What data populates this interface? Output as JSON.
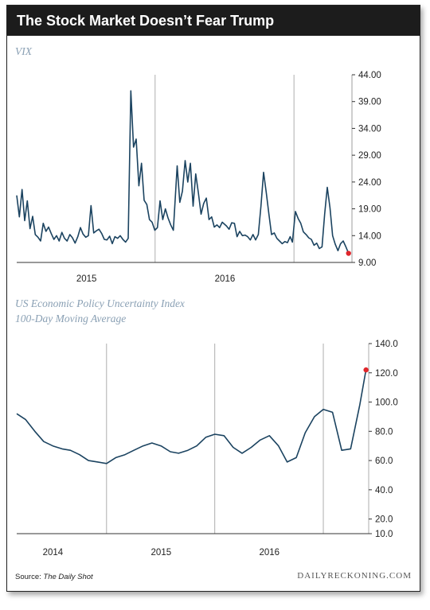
{
  "header": {
    "title": "The Stock Market Doesn’t Fear Trump"
  },
  "footer": {
    "source_label": "Source:",
    "source_name": "The Daily Shot",
    "brand": "DAILYRECKONING.COM"
  },
  "colors": {
    "line": "#1b4360",
    "endpoint": "#e0262b",
    "title_bar": "#1c1c1c",
    "chart_title": "#8aa0b4"
  },
  "chart_data": [
    {
      "type": "line",
      "title": "VIX",
      "ylim": [
        9,
        44
      ],
      "y_ticks": [
        "44.00",
        "39.00",
        "34.00",
        "29.00",
        "24.00",
        "19.00",
        "14.00",
        "9.00"
      ],
      "x_ticks": [
        "2015",
        "2016"
      ],
      "grid": "vertical",
      "endpoint_marker": true,
      "series": [
        {
          "x": [
            "2014-07-01",
            "2014-07-08",
            "2014-07-15",
            "2014-07-22",
            "2014-07-29",
            "2014-08-05",
            "2014-08-12",
            "2014-08-19",
            "2014-08-26",
            "2014-09-02",
            "2014-09-09",
            "2014-09-16",
            "2014-09-23",
            "2014-09-30",
            "2014-10-07",
            "2014-10-14",
            "2014-10-21",
            "2014-10-28",
            "2014-11-04",
            "2014-11-11",
            "2014-11-18",
            "2014-11-25",
            "2014-12-02",
            "2014-12-09",
            "2014-12-16",
            "2014-12-23",
            "2014-12-30",
            "2015-01-06",
            "2015-01-13",
            "2015-01-20",
            "2015-01-27",
            "2015-02-03",
            "2015-02-10",
            "2015-02-17",
            "2015-02-24",
            "2015-03-03",
            "2015-03-10",
            "2015-03-17",
            "2015-03-24",
            "2015-03-31",
            "2015-04-07",
            "2015-04-14",
            "2015-04-21",
            "2015-04-28",
            "2015-05-05",
            "2015-05-12",
            "2015-05-19",
            "2015-05-26",
            "2015-06-02",
            "2015-06-09",
            "2015-06-16",
            "2015-06-23",
            "2015-06-30",
            "2015-07-07",
            "2015-07-14",
            "2015-07-21",
            "2015-07-28",
            "2015-08-04",
            "2015-08-11",
            "2015-08-18",
            "2015-08-24",
            "2015-08-28",
            "2015-09-04",
            "2015-09-11",
            "2015-09-18",
            "2015-09-25",
            "2015-10-02",
            "2015-10-09",
            "2015-10-16",
            "2015-10-23",
            "2015-10-30",
            "2015-11-06",
            "2015-11-13",
            "2015-11-20",
            "2015-11-27",
            "2015-12-04",
            "2015-12-11",
            "2015-12-18",
            "2015-12-25",
            "2016-01-05",
            "2016-01-12",
            "2016-01-19",
            "2016-01-26",
            "2016-02-02",
            "2016-02-09",
            "2016-02-16",
            "2016-02-23",
            "2016-03-01",
            "2016-03-08",
            "2016-03-15",
            "2016-03-22",
            "2016-03-29",
            "2016-04-05",
            "2016-04-12",
            "2016-04-19",
            "2016-04-26",
            "2016-05-03",
            "2016-05-10",
            "2016-05-17",
            "2016-05-24",
            "2016-05-31",
            "2016-06-07",
            "2016-06-14",
            "2016-06-21",
            "2016-06-27",
            "2016-07-05",
            "2016-07-12",
            "2016-07-19",
            "2016-07-26",
            "2016-08-02",
            "2016-08-09",
            "2016-08-16",
            "2016-08-23",
            "2016-08-30",
            "2016-09-06",
            "2016-09-13",
            "2016-09-20",
            "2016-09-27",
            "2016-10-04",
            "2016-10-11",
            "2016-10-18",
            "2016-10-25",
            "2016-11-01",
            "2016-11-08",
            "2016-11-15",
            "2016-11-22"
          ],
          "values": [
            21.5,
            17.5,
            22.6,
            16.8,
            20.5,
            15.3,
            17.6,
            14.2,
            13.7,
            13.0,
            16.3,
            14.8,
            15.6,
            14.4,
            13.3,
            14.0,
            13.0,
            14.6,
            13.5,
            13.0,
            14.2,
            13.6,
            12.6,
            13.8,
            15.5,
            14.3,
            13.7,
            14.0,
            19.6,
            14.5,
            14.9,
            15.2,
            14.4,
            13.3,
            13.2,
            13.9,
            12.5,
            13.8,
            13.5,
            14.0,
            13.3,
            12.8,
            13.5,
            41.0,
            30.5,
            32.0,
            23.3,
            27.5,
            20.6,
            19.8,
            17.0,
            16.5,
            15.0,
            15.5,
            20.5,
            17.0,
            19.0,
            17.3,
            16.0,
            15.0,
            22.0,
            27.0,
            20.2,
            22.3,
            28.0,
            24.0,
            27.5,
            19.5,
            25.5,
            22.0,
            18.0,
            20.0,
            21.0,
            17.0,
            17.5,
            15.6,
            16.0,
            15.5,
            16.5,
            15.8,
            15.2,
            16.4,
            16.3,
            13.8,
            14.8,
            14.0,
            14.1,
            13.8,
            13.2,
            14.2,
            13.2,
            14.2,
            19.5,
            25.8,
            22.0,
            18.0,
            14.2,
            14.5,
            13.5,
            13.0,
            12.5,
            12.9,
            12.7,
            13.8,
            12.8,
            18.5,
            17.2,
            16.3,
            14.7,
            14.2,
            13.6,
            13.3,
            12.2,
            12.6,
            11.6,
            11.9,
            18.0,
            23.0,
            19.2,
            14.0,
            12.4,
            11.2,
            12.5,
            13.0,
            11.9,
            10.7
          ]
        }
      ]
    },
    {
      "type": "line",
      "title": "US Economic Policy Uncertainty Index",
      "subtitle": "100-Day Moving Average",
      "ylim": [
        10,
        140
      ],
      "y_ticks": [
        "140.0",
        "120.0",
        "100.0",
        "80.0",
        "60.0",
        "40.0",
        "20.0",
        "10.0"
      ],
      "x_ticks": [
        "2014",
        "2015",
        "2016"
      ],
      "grid": "vertical",
      "endpoint_marker": true,
      "series": [
        {
          "x": [
            "2013-09-01",
            "2013-10-01",
            "2013-11-01",
            "2013-12-01",
            "2014-01-01",
            "2014-02-01",
            "2014-03-01",
            "2014-04-01",
            "2014-05-01",
            "2014-06-01",
            "2014-07-01",
            "2014-08-01",
            "2014-09-01",
            "2014-10-01",
            "2014-11-01",
            "2014-12-01",
            "2015-01-01",
            "2015-02-01",
            "2015-03-01",
            "2015-04-01",
            "2015-05-01",
            "2015-06-01",
            "2015-07-01",
            "2015-08-01",
            "2015-09-01",
            "2015-10-01",
            "2015-11-01",
            "2015-12-01",
            "2016-01-01",
            "2016-02-01",
            "2016-03-01",
            "2016-04-01",
            "2016-05-01",
            "2016-06-01",
            "2016-07-01",
            "2016-08-01",
            "2016-09-01",
            "2016-10-01",
            "2016-11-01",
            "2016-11-22"
          ],
          "values": [
            92,
            88,
            80,
            73,
            70,
            68,
            67,
            64,
            60,
            59,
            58,
            62,
            64,
            67,
            70,
            72,
            70,
            66,
            65,
            67,
            70,
            76,
            78,
            77,
            69,
            65,
            69,
            74,
            77,
            70,
            59,
            62,
            79,
            90,
            95,
            93,
            67,
            68,
            98,
            122
          ]
        }
      ]
    }
  ]
}
